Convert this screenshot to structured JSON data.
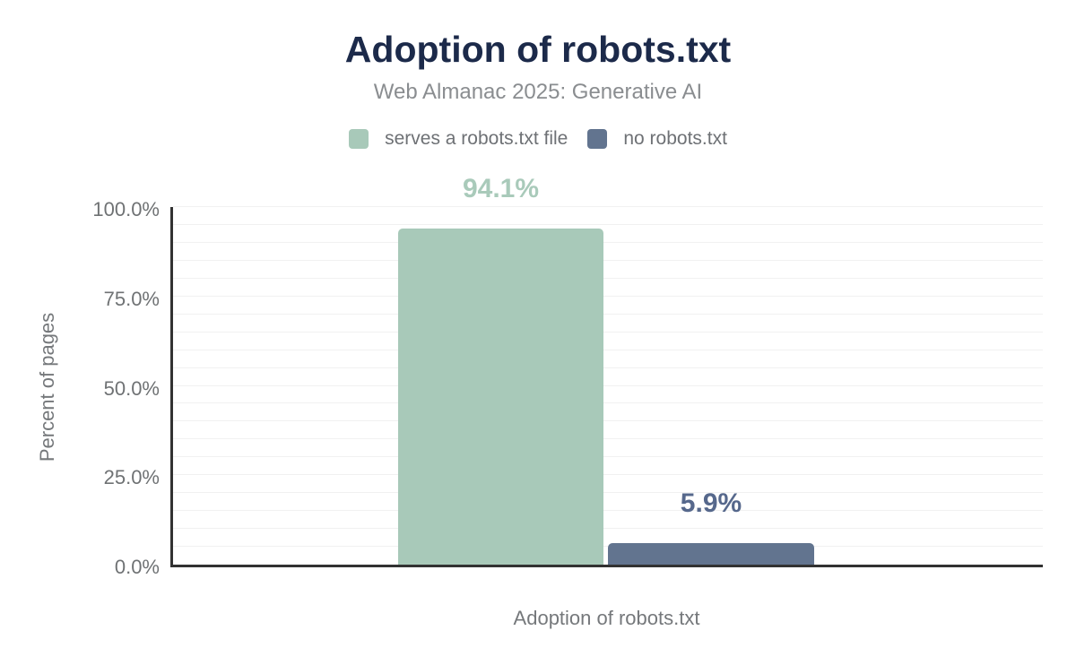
{
  "header": {
    "title": "Adoption of robots.txt",
    "subtitle": "Web Almanac 2025: Generative AI"
  },
  "legend": {
    "items": [
      {
        "label": "serves a robots.txt file",
        "color": "#a8c9b9"
      },
      {
        "label": "no robots.txt",
        "color": "#62748f"
      }
    ]
  },
  "chart_data": {
    "type": "bar",
    "title": "Adoption of robots.txt",
    "subtitle": "Web Almanac 2025: Generative AI",
    "categories": [
      "Adoption of robots.txt"
    ],
    "series": [
      {
        "name": "serves a robots.txt file",
        "values": [
          94.1
        ],
        "data_label": "94.1%",
        "color": "#a8c9b9",
        "label_color": "#a9caba"
      },
      {
        "name": "no robots.txt",
        "values": [
          5.9
        ],
        "data_label": "5.9%",
        "color": "#62748f",
        "label_color": "#56688c"
      }
    ],
    "xlabel": "Adoption of robots.txt",
    "ylabel": "Percent of pages",
    "ylim": [
      0,
      100
    ],
    "yticks": [
      {
        "value": 0,
        "label": "0.0%"
      },
      {
        "value": 25,
        "label": "25.0%"
      },
      {
        "value": 50,
        "label": "50.0%"
      },
      {
        "value": 75,
        "label": "75.0%"
      },
      {
        "value": 100,
        "label": "100.0%"
      }
    ],
    "grid": {
      "horizontal": true,
      "minor_step_percent": 5
    },
    "legend_position": "top",
    "axis_color": "#323232",
    "background": "#ffffff"
  }
}
